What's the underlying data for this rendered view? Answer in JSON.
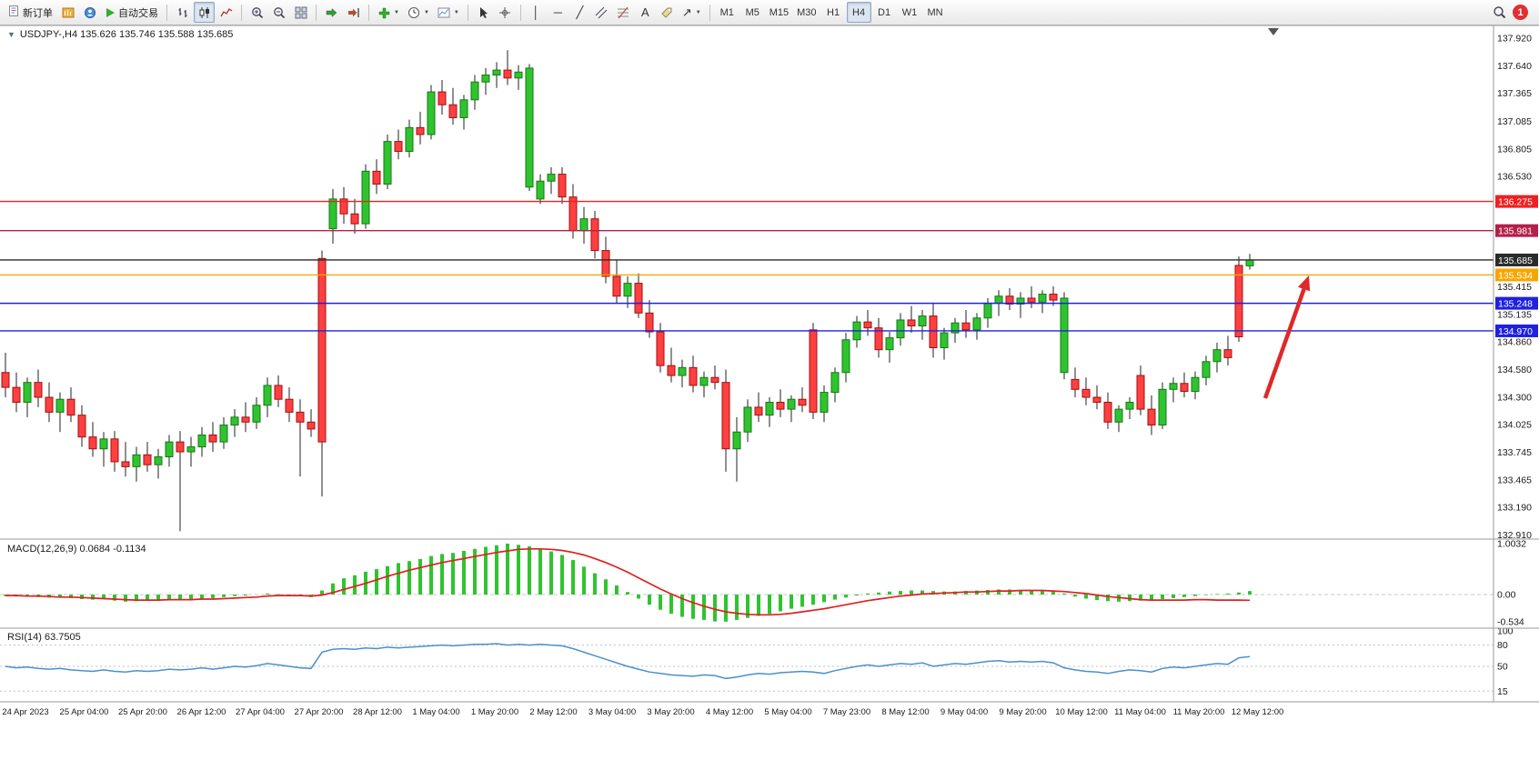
{
  "toolbar": {
    "new_order_label": "新订单",
    "auto_trading_label": "自动交易",
    "timeframes": [
      "M1",
      "M5",
      "M15",
      "M30",
      "H1",
      "H4",
      "D1",
      "W1",
      "MN"
    ],
    "active_timeframe": "H4",
    "notification_count": "1"
  },
  "icons": {
    "one_click_toggle": "▼",
    "vline": "│",
    "hline": "─",
    "trendline": "╱",
    "text_tool": "A",
    "arrows_tool": "↗",
    "dropdown_caret": "▼"
  },
  "chart": {
    "symbol_ohlc_label": "USDJPY-,H4 135.626 135.746 135.588 135.685",
    "price_axis_labels": [
      "137.920",
      "137.640",
      "137.365",
      "137.085",
      "136.805",
      "136.530",
      "135.415",
      "135.135",
      "134.860",
      "134.580",
      "134.300",
      "134.025",
      "133.745",
      "133.465",
      "133.190",
      "132.910"
    ],
    "hlines": [
      {
        "price": 136.275,
        "label": "136.275",
        "color": "#ee2020"
      },
      {
        "price": 135.981,
        "label": "135.981",
        "color": "#b52048"
      },
      {
        "price": 135.685,
        "label": "135.685",
        "color": "#2b2b2b"
      },
      {
        "price": 135.534,
        "label": "135.534",
        "color": "#f7a600"
      },
      {
        "price": 135.248,
        "label": "135.248",
        "color": "#2020e0"
      },
      {
        "price": 134.97,
        "label": "134.970",
        "color": "#2020e0"
      }
    ]
  },
  "indicators": {
    "macd_label": "MACD(12,26,9) 0.0684 -0.1134",
    "macd_axis_labels": [
      "1.0032",
      "0.00",
      "-0.534"
    ],
    "rsi_label": "RSI(14) 63.7505",
    "rsi_axis_labels": [
      "100",
      "80",
      "50",
      "15"
    ]
  },
  "colors": {
    "candle_up": "#2fc42f",
    "candle_up_border": "#157815",
    "candle_down": "#ff4040",
    "candle_down_border": "#a01010",
    "wick": "#222222",
    "macd_histogram": "#2fc42f",
    "macd_signal": "#e02020",
    "rsi_line": "#4a90cc",
    "arrow": "#e02828"
  },
  "chart_data": [
    {
      "type": "candlestick",
      "title": "USDJPY H4",
      "ylim": [
        132.87,
        138.05
      ],
      "x_labels": [
        "24 Apr 2023",
        "25 Apr 04:00",
        "25 Apr 20:00",
        "26 Apr 12:00",
        "27 Apr 04:00",
        "27 Apr 20:00",
        "28 Apr 12:00",
        "1 May 04:00",
        "1 May 20:00",
        "2 May 12:00",
        "3 May 04:00",
        "3 May 20:00",
        "4 May 12:00",
        "5 May 04:00",
        "7 May 23:00",
        "8 May 12:00",
        "9 May 04:00",
        "9 May 20:00",
        "10 May 12:00",
        "11 May 04:00",
        "11 May 20:00",
        "12 May 12:00"
      ],
      "ohlc": [
        [
          134.55,
          134.75,
          134.3,
          134.4
        ],
        [
          134.4,
          134.55,
          134.15,
          134.25
        ],
        [
          134.25,
          134.5,
          134.1,
          134.45
        ],
        [
          134.45,
          134.58,
          134.2,
          134.3
        ],
        [
          134.3,
          134.45,
          134.05,
          134.15
        ],
        [
          134.15,
          134.35,
          133.95,
          134.28
        ],
        [
          134.28,
          134.4,
          134.05,
          134.12
        ],
        [
          134.12,
          134.22,
          133.8,
          133.9
        ],
        [
          133.9,
          134.05,
          133.7,
          133.78
        ],
        [
          133.78,
          133.95,
          133.6,
          133.88
        ],
        [
          133.88,
          133.96,
          133.55,
          133.65
        ],
        [
          133.65,
          133.85,
          133.5,
          133.6
        ],
        [
          133.6,
          133.8,
          133.45,
          133.72
        ],
        [
          133.72,
          133.85,
          133.55,
          133.62
        ],
        [
          133.62,
          133.78,
          133.48,
          133.7
        ],
        [
          133.7,
          133.92,
          133.6,
          133.85
        ],
        [
          133.85,
          133.96,
          132.95,
          133.75
        ],
        [
          133.75,
          133.9,
          133.6,
          133.8
        ],
        [
          133.8,
          134.0,
          133.7,
          133.92
        ],
        [
          133.92,
          134.05,
          133.75,
          133.85
        ],
        [
          133.85,
          134.1,
          133.78,
          134.02
        ],
        [
          134.02,
          134.18,
          133.9,
          134.1
        ],
        [
          134.1,
          134.25,
          133.95,
          134.05
        ],
        [
          134.05,
          134.3,
          133.98,
          134.22
        ],
        [
          134.22,
          134.5,
          134.1,
          134.42
        ],
        [
          134.42,
          134.52,
          134.2,
          134.28
        ],
        [
          134.28,
          134.4,
          134.05,
          134.15
        ],
        [
          134.15,
          134.28,
          133.5,
          134.05
        ],
        [
          134.05,
          134.18,
          133.9,
          133.98
        ],
        [
          135.7,
          135.78,
          133.3,
          133.85
        ],
        [
          136.0,
          136.4,
          135.85,
          136.3
        ],
        [
          136.3,
          136.42,
          136.05,
          136.15
        ],
        [
          136.15,
          136.3,
          135.95,
          136.05
        ],
        [
          136.05,
          136.65,
          136.0,
          136.58
        ],
        [
          136.58,
          136.7,
          136.35,
          136.45
        ],
        [
          136.45,
          136.95,
          136.4,
          136.88
        ],
        [
          136.88,
          137.0,
          136.7,
          136.78
        ],
        [
          136.78,
          137.1,
          136.72,
          137.02
        ],
        [
          137.02,
          137.18,
          136.85,
          136.95
        ],
        [
          136.95,
          137.45,
          136.9,
          137.38
        ],
        [
          137.38,
          137.5,
          137.15,
          137.25
        ],
        [
          137.25,
          137.42,
          137.05,
          137.12
        ],
        [
          137.12,
          137.35,
          137.0,
          137.3
        ],
        [
          137.3,
          137.55,
          137.2,
          137.48
        ],
        [
          137.48,
          137.62,
          137.35,
          137.55
        ],
        [
          137.55,
          137.68,
          137.42,
          137.6
        ],
        [
          137.6,
          137.8,
          137.45,
          137.52
        ],
        [
          137.52,
          137.65,
          137.4,
          137.58
        ],
        [
          136.42,
          137.66,
          136.38,
          137.62
        ],
        [
          136.3,
          136.55,
          136.25,
          136.48
        ],
        [
          136.48,
          136.62,
          136.35,
          136.55
        ],
        [
          136.55,
          136.62,
          136.25,
          136.32
        ],
        [
          136.32,
          136.45,
          135.9,
          135.98
        ],
        [
          135.98,
          136.22,
          135.85,
          136.1
        ],
        [
          136.1,
          136.18,
          135.7,
          135.78
        ],
        [
          135.78,
          135.92,
          135.45,
          135.52
        ],
        [
          135.52,
          135.68,
          135.25,
          135.32
        ],
        [
          135.32,
          135.52,
          135.2,
          135.45
        ],
        [
          135.45,
          135.55,
          135.1,
          135.15
        ],
        [
          135.15,
          135.28,
          134.9,
          134.96
        ],
        [
          134.96,
          135.05,
          134.55,
          134.62
        ],
        [
          134.62,
          134.8,
          134.45,
          134.52
        ],
        [
          134.52,
          134.68,
          134.4,
          134.6
        ],
        [
          134.6,
          134.72,
          134.35,
          134.42
        ],
        [
          134.42,
          134.56,
          134.3,
          134.5
        ],
        [
          134.5,
          134.62,
          134.38,
          134.45
        ],
        [
          134.45,
          134.58,
          133.55,
          133.78
        ],
        [
          133.78,
          134.1,
          133.45,
          133.95
        ],
        [
          133.95,
          134.28,
          133.85,
          134.2
        ],
        [
          134.2,
          134.35,
          134.05,
          134.12
        ],
        [
          134.12,
          134.3,
          134.0,
          134.25
        ],
        [
          134.25,
          134.38,
          134.1,
          134.18
        ],
        [
          134.18,
          134.32,
          134.05,
          134.28
        ],
        [
          134.28,
          134.4,
          134.15,
          134.22
        ],
        [
          134.98,
          135.05,
          134.08,
          134.15
        ],
        [
          134.15,
          134.42,
          134.05,
          134.35
        ],
        [
          134.35,
          134.6,
          134.25,
          134.55
        ],
        [
          134.55,
          134.95,
          134.45,
          134.88
        ],
        [
          134.88,
          135.12,
          134.8,
          135.06
        ],
        [
          135.06,
          135.18,
          134.92,
          135.0
        ],
        [
          135.0,
          135.1,
          134.7,
          134.78
        ],
        [
          134.78,
          134.96,
          134.65,
          134.9
        ],
        [
          134.9,
          135.15,
          134.82,
          135.08
        ],
        [
          135.08,
          135.22,
          134.95,
          135.02
        ],
        [
          135.02,
          135.18,
          134.88,
          135.12
        ],
        [
          135.12,
          135.25,
          134.7,
          134.8
        ],
        [
          134.8,
          135.0,
          134.68,
          134.95
        ],
        [
          134.95,
          135.1,
          134.85,
          135.05
        ],
        [
          135.05,
          135.18,
          134.9,
          134.98
        ],
        [
          134.98,
          135.15,
          134.88,
          135.1
        ],
        [
          135.1,
          135.3,
          135.0,
          135.25
        ],
        [
          135.25,
          135.38,
          135.12,
          135.32
        ],
        [
          135.32,
          135.4,
          135.18,
          135.24
        ],
        [
          135.24,
          135.36,
          135.1,
          135.3
        ],
        [
          135.3,
          135.42,
          135.2,
          135.26
        ],
        [
          135.26,
          135.38,
          135.15,
          135.34
        ],
        [
          135.34,
          135.42,
          135.22,
          135.28
        ],
        [
          134.55,
          135.36,
          134.48,
          135.3
        ],
        [
          134.48,
          134.6,
          134.3,
          134.38
        ],
        [
          134.38,
          134.5,
          134.22,
          134.3
        ],
        [
          134.3,
          134.42,
          134.18,
          134.25
        ],
        [
          134.25,
          134.35,
          133.98,
          134.05
        ],
        [
          134.05,
          134.22,
          133.95,
          134.18
        ],
        [
          134.18,
          134.3,
          134.08,
          134.25
        ],
        [
          134.52,
          134.62,
          134.12,
          134.18
        ],
        [
          134.18,
          134.32,
          133.92,
          134.02
        ],
        [
          134.02,
          134.45,
          133.98,
          134.38
        ],
        [
          134.38,
          134.5,
          134.25,
          134.44
        ],
        [
          134.44,
          134.55,
          134.3,
          134.36
        ],
        [
          134.36,
          134.56,
          134.28,
          134.5
        ],
        [
          134.5,
          134.72,
          134.42,
          134.66
        ],
        [
          134.66,
          134.85,
          134.55,
          134.78
        ],
        [
          134.78,
          134.92,
          134.62,
          134.7
        ],
        [
          135.63,
          135.72,
          134.86,
          134.91
        ],
        [
          135.626,
          135.746,
          135.588,
          135.685
        ]
      ]
    },
    {
      "type": "bar",
      "title": "MACD(12,26,9)",
      "ylim": [
        -0.645,
        1.057
      ],
      "values": [
        -0.03,
        -0.04,
        -0.03,
        -0.05,
        -0.06,
        -0.05,
        -0.07,
        -0.09,
        -0.1,
        -0.08,
        -0.12,
        -0.14,
        -0.13,
        -0.11,
        -0.1,
        -0.09,
        -0.11,
        -0.1,
        -0.08,
        -0.07,
        -0.05,
        -0.03,
        -0.02,
        0.0,
        0.02,
        0.01,
        -0.01,
        -0.03,
        -0.05,
        0.08,
        0.22,
        0.32,
        0.38,
        0.45,
        0.5,
        0.56,
        0.62,
        0.66,
        0.7,
        0.76,
        0.8,
        0.82,
        0.86,
        0.9,
        0.94,
        0.97,
        1.0032,
        0.98,
        0.95,
        0.9,
        0.85,
        0.78,
        0.68,
        0.55,
        0.42,
        0.3,
        0.18,
        0.05,
        -0.08,
        -0.2,
        -0.3,
        -0.38,
        -0.44,
        -0.48,
        -0.5,
        -0.53,
        -0.534,
        -0.5,
        -0.46,
        -0.42,
        -0.38,
        -0.33,
        -0.28,
        -0.24,
        -0.2,
        -0.15,
        -0.1,
        -0.06,
        -0.02,
        0.02,
        0.04,
        0.06,
        0.07,
        0.08,
        0.08,
        0.07,
        0.06,
        0.06,
        0.07,
        0.08,
        0.09,
        0.1,
        0.1,
        0.09,
        0.08,
        0.07,
        0.06,
        0.02,
        -0.04,
        -0.08,
        -0.11,
        -0.13,
        -0.14,
        -0.13,
        -0.12,
        -0.11,
        -0.09,
        -0.07,
        -0.05,
        -0.03,
        -0.01,
        0.01,
        0.02,
        0.04,
        0.0684
      ],
      "line_series": [
        {
          "name": "signal",
          "values": [
            -0.02,
            -0.02,
            -0.03,
            -0.03,
            -0.04,
            -0.05,
            -0.05,
            -0.06,
            -0.07,
            -0.08,
            -0.09,
            -0.1,
            -0.11,
            -0.11,
            -0.11,
            -0.1,
            -0.1,
            -0.1,
            -0.09,
            -0.09,
            -0.08,
            -0.07,
            -0.06,
            -0.05,
            -0.03,
            -0.02,
            -0.02,
            -0.02,
            -0.03,
            -0.01,
            0.04,
            0.1,
            0.16,
            0.22,
            0.29,
            0.36,
            0.42,
            0.48,
            0.53,
            0.58,
            0.63,
            0.67,
            0.71,
            0.75,
            0.79,
            0.83,
            0.86,
            0.89,
            0.9,
            0.9,
            0.89,
            0.87,
            0.83,
            0.78,
            0.71,
            0.63,
            0.54,
            0.44,
            0.33,
            0.22,
            0.11,
            0.01,
            -0.08,
            -0.16,
            -0.23,
            -0.29,
            -0.34,
            -0.37,
            -0.39,
            -0.4,
            -0.4,
            -0.39,
            -0.37,
            -0.34,
            -0.31,
            -0.28,
            -0.24,
            -0.2,
            -0.16,
            -0.12,
            -0.09,
            -0.06,
            -0.03,
            -0.01,
            0.01,
            0.02,
            0.03,
            0.04,
            0.05,
            0.05,
            0.06,
            0.07,
            0.07,
            0.08,
            0.08,
            0.08,
            0.07,
            0.06,
            0.04,
            0.02,
            -0.01,
            -0.04,
            -0.06,
            -0.08,
            -0.1,
            -0.11,
            -0.11,
            -0.11,
            -0.11,
            -0.1,
            -0.1,
            -0.11,
            -0.11,
            -0.11,
            -0.1134
          ]
        }
      ]
    },
    {
      "type": "line",
      "title": "RSI(14)",
      "ylim": [
        0,
        100
      ],
      "levels": [
        80,
        50,
        15
      ],
      "values": [
        50,
        48,
        49,
        47,
        46,
        47,
        45,
        44,
        43,
        45,
        43,
        42,
        44,
        43,
        44,
        46,
        45,
        46,
        48,
        46,
        48,
        50,
        49,
        51,
        54,
        52,
        50,
        48,
        47,
        70,
        74,
        75,
        74,
        76,
        75,
        77,
        76,
        77,
        78,
        79,
        80,
        79,
        80,
        81,
        81,
        82,
        80,
        81,
        80,
        81,
        80,
        79,
        75,
        70,
        65,
        60,
        55,
        50,
        46,
        42,
        40,
        38,
        37,
        36,
        38,
        37,
        33,
        35,
        38,
        40,
        39,
        41,
        42,
        43,
        42,
        40,
        44,
        47,
        50,
        52,
        50,
        52,
        54,
        53,
        55,
        50,
        52,
        54,
        53,
        55,
        57,
        58,
        56,
        57,
        56,
        57,
        55,
        48,
        45,
        43,
        42,
        40,
        43,
        45,
        44,
        42,
        47,
        49,
        48,
        50,
        52,
        54,
        53,
        62,
        63.75
      ]
    }
  ],
  "annotations": {
    "arrow_color": "#e02828"
  }
}
